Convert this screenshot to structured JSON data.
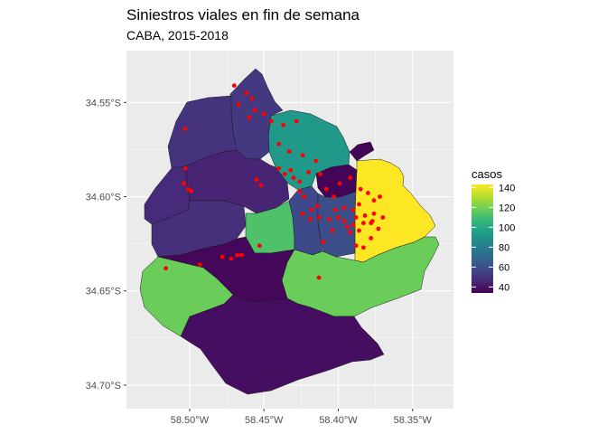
{
  "title": "Siniestros viales en fin de semana",
  "subtitle": "CABA, 2015-2018",
  "axes": {
    "y_ticks": [
      {
        "value": -34.55,
        "label": "34.55°S"
      },
      {
        "value": -34.6,
        "label": "34.60°S"
      },
      {
        "value": -34.65,
        "label": "34.65°S"
      },
      {
        "value": -34.7,
        "label": "34.70°S"
      }
    ],
    "x_ticks": [
      {
        "value": -58.5,
        "label": "58.50°W"
      },
      {
        "value": -58.45,
        "label": "58.45°W"
      },
      {
        "value": -58.4,
        "label": "58.40°W"
      },
      {
        "value": -58.35,
        "label": "58.35°W"
      }
    ],
    "lon_range": [
      -58.5425,
      -58.3225
    ],
    "lat_range": [
      -34.7125,
      -34.5225
    ]
  },
  "legend": {
    "title": "casos",
    "ticks": [
      40,
      60,
      80,
      100,
      120,
      140
    ],
    "range": [
      34,
      143
    ],
    "colors": [
      "#440154",
      "#482878",
      "#3e4a89",
      "#31688e",
      "#26828e",
      "#1f9e89",
      "#35b779",
      "#6ece58",
      "#b5de2b",
      "#fde725"
    ]
  },
  "colors": {
    "panel": "#ebebeb",
    "grid": "#ffffff",
    "points": "#ff0000",
    "border": "#1a1a1a"
  },
  "chart_data": {
    "type": "choropleth",
    "value_name": "casos",
    "regions": [
      {
        "id": 1,
        "value": 143
      },
      {
        "id": 2,
        "value": 35
      },
      {
        "id": 3,
        "value": 92
      },
      {
        "id": 4,
        "value": 52
      },
      {
        "id": 5,
        "value": 50
      },
      {
        "id": 6,
        "value": 47
      },
      {
        "id": 7,
        "value": 45
      },
      {
        "id": 8,
        "value": 49
      },
      {
        "id": 9,
        "value": 112
      },
      {
        "id": 10,
        "value": 58
      },
      {
        "id": 11,
        "value": 60
      },
      {
        "id": 12,
        "value": 118
      },
      {
        "id": 13,
        "value": 36
      },
      {
        "id": 14,
        "value": 38
      },
      {
        "id": 15,
        "value": 118
      }
    ],
    "points": [
      [
        -58.47,
        -34.541
      ],
      [
        -58.462,
        -34.545
      ],
      [
        -58.458,
        -34.548
      ],
      [
        -58.467,
        -34.551
      ],
      [
        -58.456,
        -34.554
      ],
      [
        -58.46,
        -34.558
      ],
      [
        -58.45,
        -34.556
      ],
      [
        -58.445,
        -34.56
      ],
      [
        -58.437,
        -34.562
      ],
      [
        -58.428,
        -34.56
      ],
      [
        -58.44,
        -34.572
      ],
      [
        -58.433,
        -34.576
      ],
      [
        -58.424,
        -34.578
      ],
      [
        -58.415,
        -34.581
      ],
      [
        -58.44,
        -34.585
      ],
      [
        -58.436,
        -34.588
      ],
      [
        -58.432,
        -34.586
      ],
      [
        -58.43,
        -34.59
      ],
      [
        -58.426,
        -34.592
      ],
      [
        -58.42,
        -34.587
      ],
      [
        -58.412,
        -34.588
      ],
      [
        -58.426,
        -34.597
      ],
      [
        -58.423,
        -34.6
      ],
      [
        -58.408,
        -34.596
      ],
      [
        -58.403,
        -34.6
      ],
      [
        -58.399,
        -34.593
      ],
      [
        -58.392,
        -34.59
      ],
      [
        -58.385,
        -34.596
      ],
      [
        -58.38,
        -34.598
      ],
      [
        -58.376,
        -34.602
      ],
      [
        -58.372,
        -34.6
      ],
      [
        -58.386,
        -34.604
      ],
      [
        -58.39,
        -34.607
      ],
      [
        -58.396,
        -34.606
      ],
      [
        -58.402,
        -34.607
      ],
      [
        -58.414,
        -34.605
      ],
      [
        -58.418,
        -34.607
      ],
      [
        -58.413,
        -34.611
      ],
      [
        -58.4,
        -34.611
      ],
      [
        -58.396,
        -34.613
      ],
      [
        -58.388,
        -34.611
      ],
      [
        -58.382,
        -34.61
      ],
      [
        -58.378,
        -34.614
      ],
      [
        -58.386,
        -34.618
      ],
      [
        -58.392,
        -34.619
      ],
      [
        -58.378,
        -34.622
      ],
      [
        -58.383,
        -34.627
      ],
      [
        -58.388,
        -34.626
      ],
      [
        -58.383,
        -34.614
      ],
      [
        -58.404,
        -34.618
      ],
      [
        -58.376,
        -34.609
      ],
      [
        -58.37,
        -34.611
      ],
      [
        -58.373,
        -34.617
      ],
      [
        -58.377,
        -34.613
      ],
      [
        -58.39,
        -34.615
      ],
      [
        -58.394,
        -34.616
      ],
      [
        -58.406,
        -34.612
      ],
      [
        -58.424,
        -34.609
      ],
      [
        -58.419,
        -34.612
      ],
      [
        -58.452,
        -34.594
      ],
      [
        -58.455,
        -34.591
      ],
      [
        -58.503,
        -34.564
      ],
      [
        -58.503,
        -34.585
      ],
      [
        -58.504,
        -34.593
      ],
      [
        -58.501,
        -34.596
      ],
      [
        -58.499,
        -34.597
      ],
      [
        -58.478,
        -34.632
      ],
      [
        -58.472,
        -34.633
      ],
      [
        -58.468,
        -34.631
      ],
      [
        -58.465,
        -34.631
      ],
      [
        -58.453,
        -34.626
      ],
      [
        -58.516,
        -34.638
      ],
      [
        -58.493,
        -34.636
      ],
      [
        -58.413,
        -34.643
      ],
      [
        -58.41,
        -34.624
      ]
    ]
  }
}
